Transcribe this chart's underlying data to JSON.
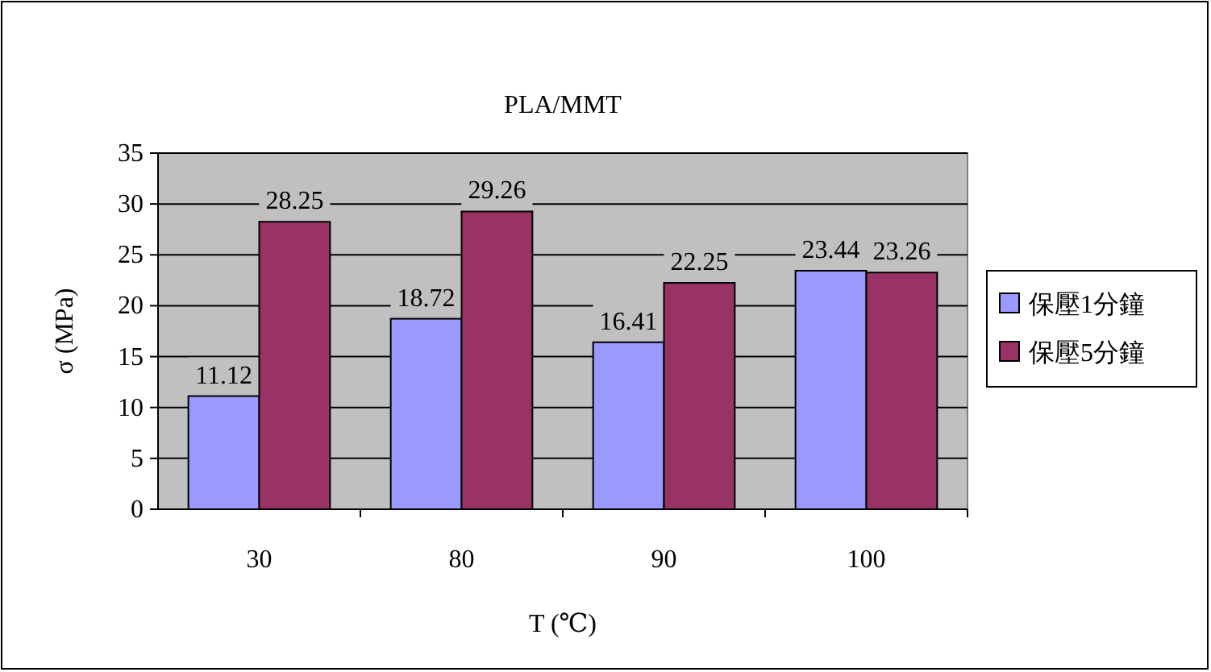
{
  "chart_data": {
    "type": "bar",
    "title": "PLA/MMT",
    "xlabel": "T (℃)",
    "ylabel": "σ (MPa)",
    "categories": [
      "30",
      "80",
      "90",
      "100"
    ],
    "series": [
      {
        "name": "保壓1分鐘",
        "color": "#9999ff",
        "values": [
          11.12,
          18.72,
          16.41,
          23.44
        ]
      },
      {
        "name": "保壓5分鐘",
        "color": "#993366",
        "values": [
          28.25,
          29.26,
          22.25,
          23.26
        ]
      }
    ],
    "ylim": [
      0,
      35
    ],
    "yticks": [
      0,
      5,
      10,
      15,
      20,
      25,
      30,
      35
    ],
    "grid": "y",
    "legend": "right",
    "data_labels": true
  }
}
